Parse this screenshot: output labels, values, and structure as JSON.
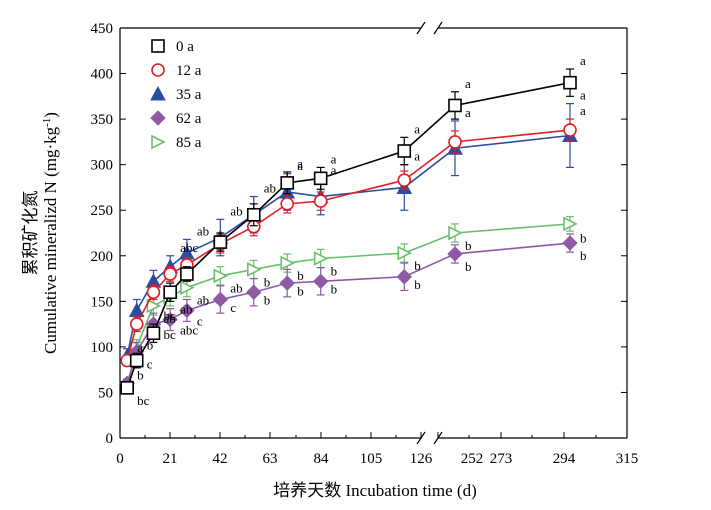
{
  "chart_data": {
    "type": "line",
    "xlabel": "培养天数 Incubation time (d)",
    "ylabel_zh": "累积矿化氮",
    "ylabel_en": "Cumulative mineralizd N (mg·kg",
    "ylabel_sup": "-1",
    "ylabel_end": ")",
    "ylim": [
      0,
      450
    ],
    "y_ticks": [
      0,
      50,
      100,
      150,
      200,
      250,
      300,
      350,
      400,
      450
    ],
    "x_ticks": [
      "0",
      "21",
      "42",
      "63",
      "84",
      "105",
      "126",
      "252",
      "273",
      "294",
      "315"
    ],
    "axis_break": "between 126 and 252",
    "legend_position": "top-left",
    "grid": false,
    "x": [
      3,
      7,
      14,
      21,
      28,
      42,
      56,
      70,
      84,
      119,
      140,
      296
    ],
    "series": [
      {
        "name": "0 a",
        "marker": "square-open",
        "color": "#000000",
        "values": [
          55,
          85,
          115,
          160,
          180,
          215,
          245,
          280,
          285,
          315,
          365,
          390
        ],
        "errors": [
          5,
          8,
          10,
          10,
          8,
          10,
          12,
          12,
          12,
          15,
          15,
          15
        ],
        "letters": [
          "b",
          "b",
          "bc",
          "",
          "",
          "",
          "",
          "a",
          "a",
          "a",
          "a",
          "a"
        ]
      },
      {
        "name": "12 a",
        "marker": "circle-open",
        "color": "#e01f25",
        "values": [
          85,
          125,
          160,
          180,
          190,
          213,
          232,
          257,
          260,
          283,
          325,
          338
        ],
        "errors": [
          5,
          8,
          8,
          8,
          8,
          10,
          10,
          10,
          10,
          10,
          12,
          12
        ],
        "letters": [
          "a",
          "",
          "",
          "",
          "",
          "",
          "",
          "",
          "",
          "",
          "",
          "a"
        ]
      },
      {
        "name": "35 a",
        "marker": "triangle-filled",
        "color": "#2a4da3",
        "values": [
          90,
          140,
          172,
          188,
          203,
          220,
          245,
          270,
          265,
          275,
          318,
          332
        ],
        "errors": [
          8,
          12,
          12,
          12,
          15,
          20,
          20,
          20,
          20,
          25,
          30,
          35
        ],
        "letters": [
          "",
          "",
          "",
          "abc",
          "ab",
          "ab",
          "ab",
          "a",
          "a",
          "a",
          "a",
          "a"
        ]
      },
      {
        "name": "62 a",
        "marker": "diamond-filled",
        "color": "#8e5aa6",
        "values": [
          60,
          95,
          125,
          130,
          140,
          152,
          160,
          170,
          172,
          177,
          202,
          214
        ],
        "errors": [
          5,
          10,
          12,
          12,
          12,
          15,
          15,
          15,
          15,
          15,
          10,
          10
        ],
        "letters": [
          "bc",
          "c",
          "bc",
          "abc",
          "c",
          "c",
          "b",
          "b",
          "b",
          "b",
          "b",
          "b"
        ]
      },
      {
        "name": "85 a",
        "marker": "triangle-right-open",
        "color": "#6abf6a",
        "values": [
          55,
          100,
          145,
          155,
          165,
          178,
          185,
          192,
          197,
          203,
          225,
          235
        ],
        "errors": [
          5,
          8,
          10,
          10,
          10,
          10,
          10,
          10,
          10,
          10,
          10,
          8
        ],
        "letters": [
          "",
          "",
          "ab",
          "ab",
          "ab",
          "ab",
          "b",
          "b",
          "b",
          "b",
          "b",
          "b"
        ]
      }
    ]
  }
}
